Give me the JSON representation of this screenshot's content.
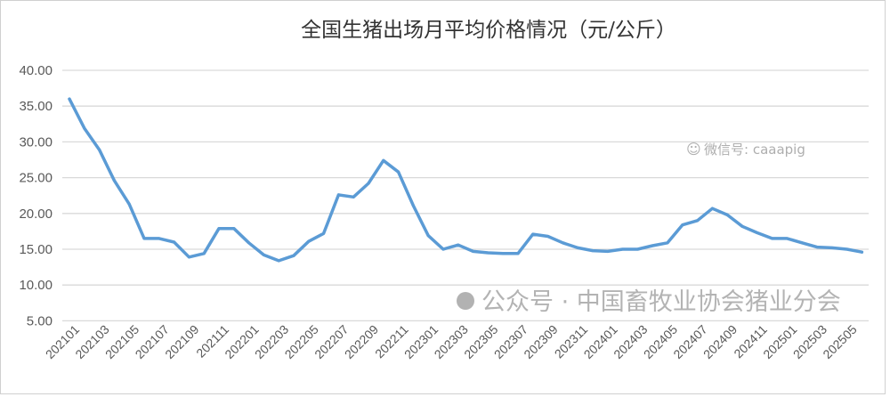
{
  "chart_data": {
    "type": "line",
    "title": "全国生猪出场月平均价格情况（元/公斤）",
    "xlabel": "",
    "ylabel": "",
    "ylim": [
      0,
      40
    ],
    "yticks": [
      "5.00",
      "10.00",
      "15.00",
      "20.00",
      "25.00",
      "30.00",
      "35.00",
      "40.00"
    ],
    "grid": true,
    "legend": "none",
    "x": [
      "202101",
      "202102",
      "202103",
      "202104",
      "202105",
      "202106",
      "202107",
      "202108",
      "202109",
      "202110",
      "202111",
      "202112",
      "202201",
      "202202",
      "202203",
      "202204",
      "202205",
      "202206",
      "202207",
      "202208",
      "202209",
      "202210",
      "202211",
      "202212",
      "202301",
      "202302",
      "202303",
      "202304",
      "202305",
      "202306",
      "202307",
      "202308",
      "202309",
      "202310",
      "202311",
      "202312",
      "202401",
      "202402",
      "202403",
      "202404",
      "202405",
      "202406",
      "202407",
      "202408",
      "202409",
      "202410",
      "202411",
      "202412",
      "202501",
      "202502",
      "202503",
      "202504",
      "202505",
      "202506"
    ],
    "xtick_labels": [
      "202101",
      "202103",
      "202105",
      "202107",
      "202109",
      "202111",
      "202201",
      "202203",
      "202205",
      "202207",
      "202209",
      "202211",
      "202301",
      "202303",
      "202305",
      "202307",
      "202309",
      "202311",
      "202401",
      "202403",
      "202405",
      "202407",
      "202409",
      "202411",
      "202501",
      "202503",
      "202505"
    ],
    "series": [
      {
        "color": "#5b9bd5",
        "values": [
          36.0,
          31.9,
          28.9,
          24.6,
          21.3,
          16.5,
          16.5,
          16.0,
          13.9,
          14.4,
          17.9,
          17.9,
          15.9,
          14.2,
          13.4,
          14.1,
          16.1,
          17.2,
          22.6,
          22.3,
          24.2,
          27.4,
          25.8,
          21.1,
          16.9,
          15.0,
          15.6,
          14.7,
          14.5,
          14.4,
          14.4,
          17.1,
          16.8,
          15.9,
          15.2,
          14.8,
          14.7,
          15.0,
          15.0,
          15.5,
          15.9,
          18.4,
          19.0,
          20.7,
          19.8,
          18.2,
          17.3,
          16.5,
          16.5,
          15.9,
          15.3,
          15.2,
          15.0,
          14.6
        ]
      }
    ]
  },
  "watermarks": {
    "wechat_id": "微信号: caaapig",
    "account": "公众号 · 中国畜牧业协会猪业分会"
  }
}
